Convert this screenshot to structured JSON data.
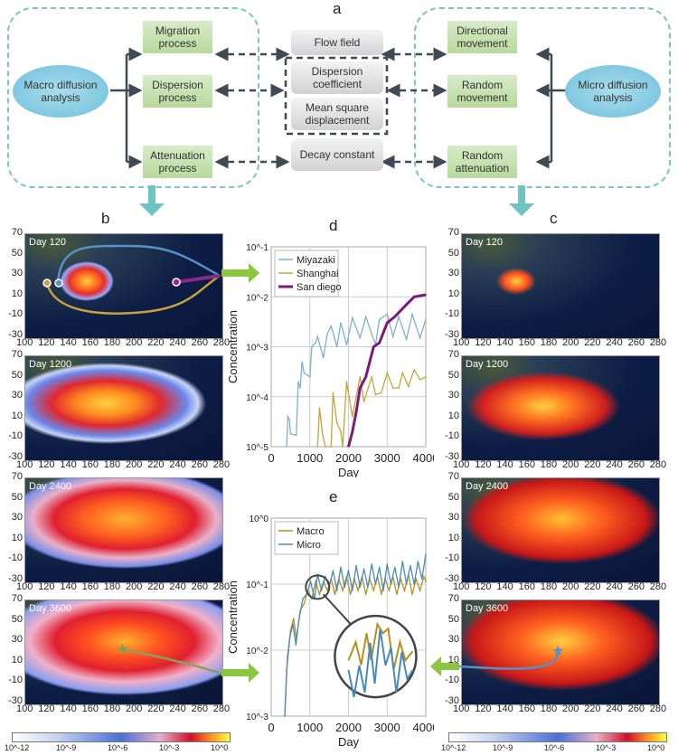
{
  "panel_a": {
    "letter": "a",
    "macro": "Macro diffusion analysis",
    "micro": "Micro diffusion analysis",
    "left_boxes": [
      "Migration process",
      "Dispersion process",
      "Attenuation process"
    ],
    "center_boxes": [
      "Flow field",
      "Dispersion coefficient",
      "Mean square displacement",
      "Decay constant"
    ],
    "right_boxes": [
      "Directional movement",
      "Random movement",
      "Random attenuation"
    ],
    "colors": {
      "region_border": "#7cc3c3",
      "process_box": "#c6e2ae",
      "parameter_box": "#e2e2e4",
      "oval": "#8fd0e6",
      "arrow": "#3f4a54"
    }
  },
  "panel_b": {
    "letter": "b",
    "maps": [
      "Day 120",
      "Day 1200",
      "Day 2400",
      "Day 3600"
    ]
  },
  "panel_c": {
    "letter": "c",
    "maps": [
      "Day 120",
      "Day 1200",
      "Day 2400",
      "Day 3600"
    ]
  },
  "map_axes": {
    "x_ticks": [
      "100",
      "120",
      "140",
      "160",
      "180",
      "200",
      "220",
      "240",
      "260",
      "280"
    ],
    "y_ticks": [
      "70",
      "50",
      "30",
      "10",
      "-10",
      "-30"
    ]
  },
  "colorbar": {
    "labels": [
      "10^-12",
      "10^-9",
      "10^-6",
      "10^-3",
      "10^0"
    ],
    "colors": [
      "#ffffff",
      "#4a6fd8",
      "#e8b0c8",
      "#d0102a",
      "#ffff40"
    ]
  },
  "chart_data": [
    {
      "type": "line",
      "panel": "d",
      "xlabel": "Day",
      "ylabel": "Concentration",
      "xlim": [
        0,
        4000
      ],
      "ylim": [
        1e-05,
        0.1
      ],
      "yscale": "log",
      "x_ticks": [
        "0",
        "1000",
        "2000",
        "3000",
        "4000"
      ],
      "y_ticks": [
        "10^-5",
        "10^-4",
        "10^-3",
        "10^-2",
        "10^-1"
      ],
      "grid": true,
      "legend": "top-left",
      "series": [
        {
          "name": "Miyazaki",
          "color": "#7fb0c8",
          "points": [
            [
              400,
              1e-05
            ],
            [
              430,
              4e-05
            ],
            [
              470,
              3.5e-05
            ],
            [
              500,
              1.8e-05
            ],
            [
              650,
              1.7e-05
            ],
            [
              700,
              0.0002
            ],
            [
              750,
              0.00015
            ],
            [
              800,
              0.0005
            ],
            [
              850,
              0.0003
            ],
            [
              1000,
              0.00025
            ],
            [
              1050,
              0.001
            ],
            [
              1150,
              0.0012
            ],
            [
              1200,
              0.0016
            ],
            [
              1350,
              0.0006
            ],
            [
              1450,
              0.0018
            ],
            [
              1550,
              0.0026
            ],
            [
              1700,
              0.001
            ],
            [
              1800,
              0.003
            ],
            [
              1950,
              0.0011
            ],
            [
              2100,
              0.0038
            ],
            [
              2300,
              0.0015
            ],
            [
              2450,
              0.004
            ],
            [
              2600,
              0.0018
            ],
            [
              2700,
              0.0011
            ],
            [
              2800,
              0.0035
            ],
            [
              3000,
              0.0045
            ],
            [
              3150,
              0.0016
            ],
            [
              3300,
              0.004
            ],
            [
              3500,
              0.0014
            ],
            [
              3650,
              0.0045
            ],
            [
              3850,
              0.0015
            ],
            [
              4000,
              0.0035
            ]
          ]
        },
        {
          "name": "Shanghai",
          "color": "#c8a23c",
          "points": [
            [
              1200,
              1e-05
            ],
            [
              1250,
              6e-05
            ],
            [
              1320,
              2e-05
            ],
            [
              1400,
              1e-05
            ],
            [
              1550,
              1e-05
            ],
            [
              1600,
              0.00012
            ],
            [
              1700,
              3e-05
            ],
            [
              1800,
              2e-05
            ],
            [
              1850,
              1e-05
            ],
            [
              1950,
              0.0002
            ],
            [
              2100,
              4e-05
            ],
            [
              2300,
              0.00025
            ],
            [
              2400,
              8e-05
            ],
            [
              2600,
              0.00025
            ],
            [
              2700,
              0.00011
            ],
            [
              2850,
              0.00012
            ],
            [
              3000,
              0.0003
            ],
            [
              3150,
              0.00015
            ],
            [
              3300,
              0.00015
            ],
            [
              3400,
              0.0003
            ],
            [
              3550,
              0.00016
            ],
            [
              3700,
              0.00035
            ],
            [
              3850,
              0.00022
            ],
            [
              4000,
              0.00025
            ]
          ]
        },
        {
          "name": "San diego",
          "color": "#7a1a7a",
          "points": [
            [
              2000,
              1e-05
            ],
            [
              2100,
              2e-05
            ],
            [
              2200,
              5e-05
            ],
            [
              2300,
              0.00015
            ],
            [
              2450,
              0.00025
            ],
            [
              2550,
              0.0005
            ],
            [
              2650,
              0.001
            ],
            [
              2800,
              0.0012
            ],
            [
              3000,
              0.003
            ],
            [
              3200,
              0.004
            ],
            [
              3500,
              0.007
            ],
            [
              3700,
              0.01
            ],
            [
              4000,
              0.011
            ]
          ]
        }
      ]
    },
    {
      "type": "line",
      "panel": "e",
      "xlabel": "Day",
      "ylabel": "Concentration",
      "xlim": [
        0,
        4000
      ],
      "ylim": [
        0.001,
        1
      ],
      "yscale": "log",
      "x_ticks": [
        "0",
        "1000",
        "2000",
        "3000",
        "4000"
      ],
      "y_ticks": [
        "10^-3",
        "10^-2",
        "10^-1",
        "10^0"
      ],
      "grid": true,
      "legend": "top-left",
      "series": [
        {
          "name": "Macro",
          "color": "#b8901c",
          "points": [
            [
              350,
              0.001
            ],
            [
              420,
              0.008
            ],
            [
              500,
              0.02
            ],
            [
              580,
              0.03
            ],
            [
              650,
              0.015
            ],
            [
              750,
              0.04
            ],
            [
              850,
              0.05
            ],
            [
              950,
              0.08
            ],
            [
              1050,
              0.06
            ],
            [
              1150,
              0.11
            ],
            [
              1250,
              0.07
            ],
            [
              1350,
              0.11
            ],
            [
              1450,
              0.08
            ],
            [
              1550,
              0.12
            ],
            [
              1650,
              0.07
            ],
            [
              1750,
              0.12
            ],
            [
              1850,
              0.08
            ],
            [
              1950,
              0.13
            ],
            [
              2050,
              0.07
            ],
            [
              2150,
              0.12
            ],
            [
              2250,
              0.08
            ],
            [
              2350,
              0.13
            ],
            [
              2450,
              0.07
            ],
            [
              2550,
              0.12
            ],
            [
              2650,
              0.08
            ],
            [
              2750,
              0.13
            ],
            [
              2850,
              0.07
            ],
            [
              2950,
              0.12
            ],
            [
              3050,
              0.08
            ],
            [
              3150,
              0.13
            ],
            [
              3250,
              0.07
            ],
            [
              3350,
              0.12
            ],
            [
              3450,
              0.08
            ],
            [
              3550,
              0.14
            ],
            [
              3650,
              0.07
            ],
            [
              3750,
              0.12
            ],
            [
              3850,
              0.08
            ],
            [
              3950,
              0.13
            ],
            [
              4000,
              0.11
            ]
          ]
        },
        {
          "name": "Micro",
          "color": "#4a8ab8",
          "points": [
            [
              350,
              0.001
            ],
            [
              400,
              0.005
            ],
            [
              480,
              0.015
            ],
            [
              560,
              0.025
            ],
            [
              640,
              0.012
            ],
            [
              720,
              0.03
            ],
            [
              820,
              0.06
            ],
            [
              920,
              0.07
            ],
            [
              1020,
              0.11
            ],
            [
              1120,
              0.06
            ],
            [
              1200,
              0.14
            ],
            [
              1300,
              0.08
            ],
            [
              1400,
              0.13
            ],
            [
              1500,
              0.09
            ],
            [
              1600,
              0.16
            ],
            [
              1700,
              0.08
            ],
            [
              1800,
              0.18
            ],
            [
              1900,
              0.09
            ],
            [
              2000,
              0.16
            ],
            [
              2100,
              0.08
            ],
            [
              2200,
              0.19
            ],
            [
              2300,
              0.09
            ],
            [
              2400,
              0.17
            ],
            [
              2500,
              0.09
            ],
            [
              2600,
              0.2
            ],
            [
              2700,
              0.1
            ],
            [
              2800,
              0.18
            ],
            [
              2900,
              0.08
            ],
            [
              3000,
              0.2
            ],
            [
              3100,
              0.1
            ],
            [
              3200,
              0.18
            ],
            [
              3300,
              0.09
            ],
            [
              3400,
              0.22
            ],
            [
              3500,
              0.1
            ],
            [
              3600,
              0.19
            ],
            [
              3700,
              0.1
            ],
            [
              3800,
              0.22
            ],
            [
              3900,
              0.12
            ],
            [
              4000,
              0.28
            ]
          ]
        }
      ]
    }
  ]
}
